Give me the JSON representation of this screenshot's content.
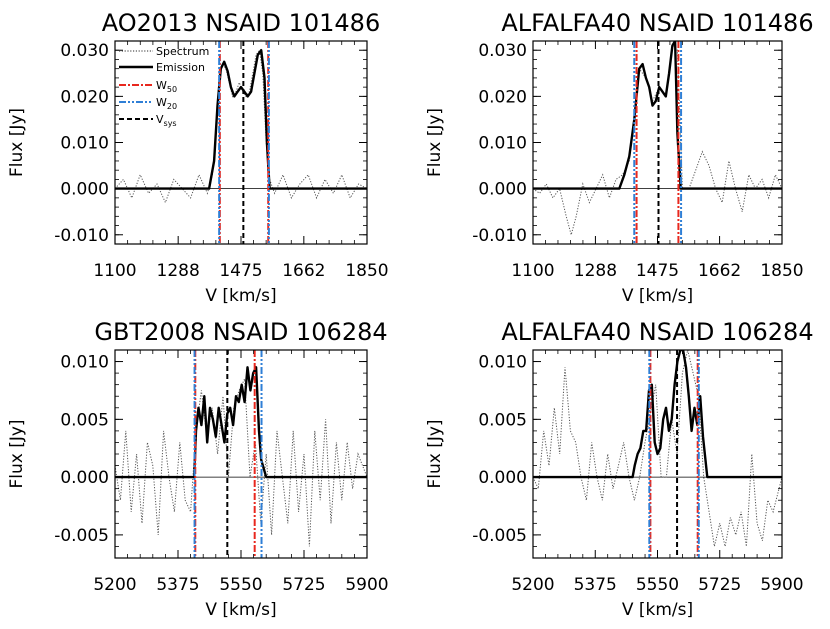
{
  "colors": {
    "spectrum": "#555555",
    "emission": "#000000",
    "w50": "#e8281e",
    "w20": "#2f7fd6",
    "vsys": "#000000",
    "zero": "#000000"
  },
  "legend": {
    "spectrum": "Spectrum",
    "emission": "Emission",
    "w50_main": "W",
    "w50_sub": "50",
    "w20_main": "W",
    "w20_sub": "20",
    "vsys_main": "V",
    "vsys_sub": "sys"
  },
  "chart_data": [
    {
      "type": "line",
      "title": "AO2013 NSAID 101486",
      "xlabel": "V [km/s]",
      "ylabel": "Flux [Jy]",
      "xlim": [
        1100,
        1850
      ],
      "ylim": [
        -0.012,
        0.032
      ],
      "xticks": [
        1100,
        1288,
        1475,
        1662,
        1850
      ],
      "xtick_labels": [
        "1100",
        "1288",
        "1475",
        "1662",
        "1850"
      ],
      "yticks": [
        -0.01,
        0.0,
        0.01,
        0.02,
        0.03
      ],
      "ytick_labels": [
        "-0.010",
        "0.000",
        "0.010",
        "0.020",
        "0.030"
      ],
      "show_legend": true,
      "legend_position": "top-left",
      "series": [
        {
          "name": "Spectrum",
          "style": "dotted",
          "x": [
            1100,
            1125,
            1150,
            1175,
            1200,
            1225,
            1250,
            1275,
            1300,
            1325,
            1350,
            1375,
            1390,
            1400,
            1410,
            1420,
            1430,
            1440,
            1450,
            1460,
            1470,
            1480,
            1490,
            1500,
            1510,
            1520,
            1530,
            1540,
            1550,
            1560,
            1575,
            1600,
            1625,
            1650,
            1675,
            1700,
            1725,
            1750,
            1775,
            1800,
            1825,
            1850
          ],
          "y": [
            0.0,
            0.002,
            -0.002,
            0.003,
            -0.001,
            0.001,
            -0.003,
            0.002,
            0.0,
            -0.002,
            0.003,
            -0.001,
            0.003,
            0.012,
            0.025,
            0.027,
            0.026,
            0.023,
            0.02,
            0.021,
            0.023,
            0.021,
            0.02,
            0.021,
            0.025,
            0.029,
            0.03,
            0.025,
            0.01,
            0.002,
            -0.001,
            0.003,
            -0.002,
            0.001,
            0.003,
            -0.002,
            0.002,
            -0.001,
            0.003,
            -0.002,
            0.001,
            0.0
          ]
        },
        {
          "name": "Emission",
          "style": "solid",
          "x": [
            1100,
            1380,
            1395,
            1405,
            1415,
            1425,
            1435,
            1445,
            1455,
            1465,
            1475,
            1485,
            1495,
            1505,
            1515,
            1525,
            1535,
            1545,
            1552,
            1560,
            1580,
            1850
          ],
          "y": [
            0.0,
            0.0,
            0.006,
            0.018,
            0.026,
            0.0275,
            0.0255,
            0.022,
            0.02,
            0.021,
            0.022,
            0.021,
            0.02,
            0.021,
            0.025,
            0.029,
            0.03,
            0.024,
            0.01,
            0.0,
            0.0,
            0.0
          ]
        }
      ],
      "vlines": [
        {
          "kind": "w50",
          "x": 1412
        },
        {
          "kind": "w50",
          "x": 1556
        },
        {
          "kind": "w20",
          "x": 1410
        },
        {
          "kind": "w20",
          "x": 1558
        },
        {
          "kind": "vsys",
          "x": 1482
        }
      ]
    },
    {
      "type": "line",
      "title": "ALFALFA40 NSAID 101486",
      "xlabel": "V [km/s]",
      "ylabel": "Flux [Jy]",
      "xlim": [
        1100,
        1850
      ],
      "ylim": [
        -0.012,
        0.032
      ],
      "xticks": [
        1100,
        1288,
        1475,
        1662,
        1850
      ],
      "xtick_labels": [
        "1100",
        "1288",
        "1475",
        "1662",
        "1850"
      ],
      "yticks": [
        -0.01,
        0.0,
        0.01,
        0.02,
        0.03
      ],
      "ytick_labels": [
        "-0.010",
        "0.000",
        "0.010",
        "0.020",
        "0.030"
      ],
      "show_legend": false,
      "series": [
        {
          "name": "Spectrum",
          "style": "dotted",
          "x": [
            1100,
            1120,
            1140,
            1160,
            1180,
            1200,
            1215,
            1230,
            1250,
            1270,
            1290,
            1310,
            1330,
            1350,
            1370,
            1390,
            1405,
            1420,
            1440,
            1460,
            1480,
            1500,
            1520,
            1535,
            1550,
            1570,
            1590,
            1610,
            1630,
            1650,
            1670,
            1690,
            1710,
            1730,
            1750,
            1770,
            1790,
            1810,
            1830,
            1850
          ],
          "y": [
            0.0,
            -0.001,
            0.001,
            -0.002,
            0.0,
            -0.006,
            -0.01,
            -0.006,
            0.001,
            -0.003,
            0.0,
            0.003,
            -0.002,
            0.002,
            0.003,
            0.006,
            0.015,
            0.026,
            0.024,
            0.019,
            0.022,
            0.02,
            0.031,
            0.03,
            0.0,
            0.0,
            0.004,
            0.008,
            0.005,
            0.0,
            -0.003,
            0.006,
            0.0,
            -0.005,
            0.003,
            0.0,
            0.002,
            -0.002,
            0.003,
            0.0
          ]
        },
        {
          "name": "Emission",
          "style": "solid",
          "x": [
            1100,
            1360,
            1375,
            1390,
            1405,
            1420,
            1430,
            1440,
            1450,
            1460,
            1470,
            1480,
            1490,
            1500,
            1510,
            1520,
            1528,
            1535,
            1545,
            1560,
            1850
          ],
          "y": [
            0.0,
            0.0,
            0.003,
            0.007,
            0.015,
            0.026,
            0.027,
            0.024,
            0.022,
            0.018,
            0.019,
            0.022,
            0.021,
            0.02,
            0.025,
            0.031,
            0.032,
            0.012,
            0.0,
            0.0,
            0.0
          ]
        }
      ],
      "vlines": [
        {
          "kind": "w50",
          "x": 1412
        },
        {
          "kind": "w50",
          "x": 1538
        },
        {
          "kind": "w20",
          "x": 1405
        },
        {
          "kind": "w20",
          "x": 1546
        },
        {
          "kind": "vsys",
          "x": 1478
        }
      ]
    },
    {
      "type": "line",
      "title": "GBT2008 NSAID 106284",
      "xlabel": "V [km/s]",
      "ylabel": "Flux [Jy]",
      "xlim": [
        5200,
        5900
      ],
      "ylim": [
        -0.007,
        0.011
      ],
      "xticks": [
        5200,
        5375,
        5550,
        5725,
        5900
      ],
      "xtick_labels": [
        "5200",
        "5375",
        "5550",
        "5725",
        "5900"
      ],
      "yticks": [
        -0.005,
        0.0,
        0.005,
        0.01
      ],
      "ytick_labels": [
        "-0.005",
        "0.000",
        "0.005",
        "0.010"
      ],
      "show_legend": false,
      "series": [
        {
          "name": "Spectrum",
          "style": "dotted",
          "x": [
            5200,
            5215,
            5230,
            5245,
            5260,
            5275,
            5290,
            5305,
            5320,
            5335,
            5350,
            5365,
            5380,
            5395,
            5410,
            5425,
            5440,
            5455,
            5470,
            5485,
            5500,
            5515,
            5530,
            5545,
            5560,
            5575,
            5590,
            5605,
            5620,
            5635,
            5650,
            5665,
            5680,
            5695,
            5710,
            5725,
            5740,
            5755,
            5770,
            5785,
            5800,
            5815,
            5830,
            5845,
            5860,
            5875,
            5900
          ],
          "y": [
            0.001,
            -0.002,
            0.004,
            -0.003,
            0.002,
            -0.004,
            0.003,
            0.001,
            -0.005,
            0.004,
            0.0,
            -0.003,
            0.003,
            -0.002,
            -0.003,
            0.004,
            0.0075,
            0.0035,
            0.006,
            0.002,
            0.007,
            0.0,
            0.006,
            0.0075,
            0.0085,
            0.0,
            0.003,
            -0.004,
            0.002,
            -0.005,
            0.004,
            0.0,
            -0.004,
            0.004,
            -0.003,
            0.002,
            -0.006,
            0.004,
            -0.002,
            0.005,
            -0.004,
            0.003,
            -0.002,
            0.003,
            -0.001,
            0.002,
            0.0
          ]
        },
        {
          "name": "Emission",
          "style": "solid",
          "x": [
            5200,
            5420,
            5425,
            5432,
            5440,
            5448,
            5456,
            5464,
            5472,
            5480,
            5488,
            5496,
            5504,
            5512,
            5520,
            5528,
            5536,
            5544,
            5552,
            5560,
            5568,
            5576,
            5584,
            5592,
            5600,
            5606,
            5620,
            5900
          ],
          "y": [
            0.0,
            0.0,
            0.004,
            0.006,
            0.0045,
            0.007,
            0.003,
            0.006,
            0.005,
            0.0035,
            0.006,
            0.0045,
            0.003,
            0.0055,
            0.006,
            0.0045,
            0.007,
            0.0065,
            0.008,
            0.0065,
            0.0095,
            0.0075,
            0.009,
            0.0095,
            0.004,
            0.0015,
            0.0,
            0.0
          ]
        }
      ],
      "vlines": [
        {
          "kind": "w50",
          "x": 5423
        },
        {
          "kind": "w50",
          "x": 5588
        },
        {
          "kind": "w20",
          "x": 5421
        },
        {
          "kind": "w20",
          "x": 5607
        },
        {
          "kind": "vsys",
          "x": 5512
        }
      ]
    },
    {
      "type": "line",
      "title": "ALFALFA40 NSAID 106284",
      "xlabel": "V [km/s]",
      "ylabel": "Flux [Jy]",
      "xlim": [
        5200,
        5900
      ],
      "ylim": [
        -0.007,
        0.011
      ],
      "xticks": [
        5200,
        5375,
        5550,
        5725,
        5900
      ],
      "xtick_labels": [
        "5200",
        "5375",
        "5550",
        "5725",
        "5900"
      ],
      "yticks": [
        -0.005,
        0.0,
        0.005,
        0.01
      ],
      "ytick_labels": [
        "-0.005",
        "0.000",
        "0.005",
        "0.010"
      ],
      "show_legend": false,
      "series": [
        {
          "name": "Spectrum",
          "style": "dotted",
          "x": [
            5200,
            5215,
            5230,
            5245,
            5260,
            5275,
            5290,
            5305,
            5320,
            5335,
            5350,
            5365,
            5380,
            5395,
            5410,
            5425,
            5440,
            5455,
            5470,
            5485,
            5500,
            5515,
            5530,
            5545,
            5560,
            5575,
            5590,
            5605,
            5620,
            5635,
            5650,
            5665,
            5680,
            5695,
            5710,
            5725,
            5740,
            5755,
            5770,
            5785,
            5800,
            5815,
            5830,
            5845,
            5860,
            5875,
            5900
          ],
          "y": [
            0.0,
            -0.001,
            0.004,
            0.001,
            0.006,
            0.002,
            0.0095,
            0.004,
            0.003,
            0.0,
            -0.002,
            0.003,
            0.0,
            -0.002,
            0.002,
            -0.001,
            0.001,
            0.003,
            0.0,
            -0.002,
            0.0,
            0.003,
            0.0055,
            0.008,
            0.0,
            0.0,
            0.005,
            0.002,
            0.009,
            0.011,
            0.009,
            0.007,
            0.0,
            -0.003,
            -0.006,
            -0.004,
            -0.006,
            -0.0035,
            -0.005,
            -0.003,
            -0.006,
            0.002,
            -0.004,
            -0.0055,
            -0.002,
            -0.003,
            0.0
          ]
        },
        {
          "name": "Emission",
          "style": "solid",
          "x": [
            5200,
            5480,
            5486,
            5494,
            5502,
            5510,
            5518,
            5526,
            5534,
            5542,
            5550,
            5558,
            5566,
            5574,
            5582,
            5590,
            5598,
            5606,
            5614,
            5622,
            5630,
            5638,
            5646,
            5654,
            5662,
            5670,
            5678,
            5690,
            5900
          ],
          "y": [
            0.0,
            0.0,
            0.001,
            0.002,
            0.0025,
            0.004,
            0.004,
            0.0075,
            0.008,
            0.003,
            0.002,
            0.0025,
            0.005,
            0.006,
            0.004,
            0.005,
            0.008,
            0.01,
            0.011,
            0.011,
            0.0095,
            0.007,
            0.004,
            0.006,
            0.0045,
            0.007,
            0.0035,
            0.0,
            0.0
          ]
        }
      ],
      "vlines": [
        {
          "kind": "w50",
          "x": 5530
        },
        {
          "kind": "w50",
          "x": 5663
        },
        {
          "kind": "w20",
          "x": 5527
        },
        {
          "kind": "w20",
          "x": 5666
        },
        {
          "kind": "vsys",
          "x": 5605
        }
      ]
    }
  ]
}
